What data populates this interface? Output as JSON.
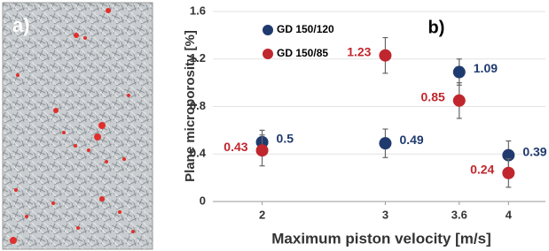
{
  "panel_a": {
    "label": "a)"
  },
  "chart_data": {
    "type": "scatter",
    "annotation": "b)",
    "x_label": "Maximum piston velocity [m/s]",
    "y_label": "Plane microporosity [%]",
    "x": [
      2,
      3,
      3.6,
      4
    ],
    "xlim": [
      1.6,
      4.3
    ],
    "xticks": [
      2,
      3,
      3.6,
      4
    ],
    "ylim": [
      0,
      1.6
    ],
    "yticks": [
      0,
      0.4,
      0.8,
      1.2,
      1.6
    ],
    "grid": true,
    "legend": "top-left",
    "series": [
      {
        "name": "GD 150/120",
        "color": "#1f3a6e",
        "values": [
          0.5,
          0.49,
          1.09,
          0.39
        ],
        "errors": [
          0.1,
          0.12,
          0.11,
          0.12
        ]
      },
      {
        "name": "GD 150/85",
        "color": "#c0262d",
        "values": [
          0.43,
          1.23,
          0.85,
          0.24
        ],
        "errors": [
          0.13,
          0.15,
          0.15,
          0.12
        ]
      }
    ]
  }
}
